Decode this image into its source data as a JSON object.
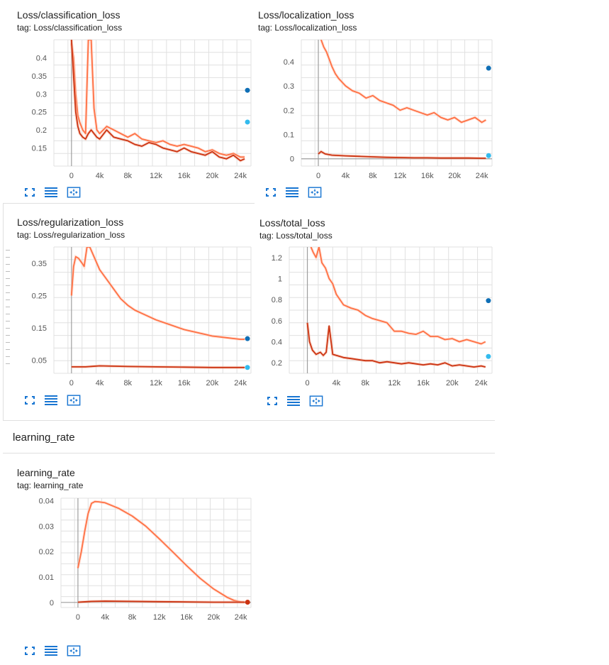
{
  "colors": {
    "series_orange": "#ff7043",
    "series_orange_light": "#ffccbc",
    "series_red": "#cc3311",
    "series_red_light": "#f4b6a3",
    "dot_dark_blue": "#0f6fb6",
    "dot_light_blue": "#33bbee",
    "grid": "#e0e0e0",
    "axis": "#9e9e9e"
  },
  "toolbar": {
    "icons": [
      "fullscreen-icon",
      "lines-icon",
      "fit-domain-icon"
    ]
  },
  "groups": {
    "learning_rate_title": "learning_rate"
  },
  "cards": [
    {
      "title": "Loss/classification_loss",
      "tag": "tag: Loss/classification_loss",
      "chart_data": {
        "type": "line",
        "x_ticks": [
          "0",
          "4k",
          "8k",
          "12k",
          "16k",
          "20k",
          "24k"
        ],
        "y_ticks": [
          "0.15",
          "0.2",
          "0.25",
          "0.3",
          "0.35",
          "0.4"
        ],
        "xlim": [
          -2500,
          25500
        ],
        "ylim": [
          0.1,
          0.45
        ],
        "series": [
          {
            "color": "orange",
            "x": [
              0,
              300,
              600,
              900,
              1200,
              1600,
              2000,
              2400,
              2800,
              3200,
              3600,
              4000,
              5000,
              6000,
              7000,
              8000,
              9000,
              10000,
              11000,
              12000,
              13000,
              14000,
              15000,
              16000,
              17000,
              18000,
              19000,
              20000,
              21000,
              22000,
              23000,
              24000,
              24600
            ],
            "y": [
              0.44,
              0.4,
              0.3,
              0.24,
              0.22,
              0.2,
              0.19,
              0.45,
              0.45,
              0.26,
              0.2,
              0.19,
              0.21,
              0.2,
              0.19,
              0.18,
              0.19,
              0.175,
              0.17,
              0.165,
              0.17,
              0.16,
              0.155,
              0.16,
              0.155,
              0.15,
              0.14,
              0.145,
              0.135,
              0.13,
              0.135,
              0.125,
              0.125
            ]
          },
          {
            "color": "red",
            "x": [
              0,
              300,
              600,
              900,
              1200,
              1600,
              2000,
              2400,
              2800,
              3200,
              3600,
              4000,
              5000,
              6000,
              7000,
              8000,
              9000,
              10000,
              11000,
              12000,
              13000,
              14000,
              15000,
              16000,
              17000,
              18000,
              19000,
              20000,
              21000,
              22000,
              23000,
              24000,
              24600
            ],
            "y": [
              0.45,
              0.35,
              0.25,
              0.21,
              0.19,
              0.18,
              0.175,
              0.19,
              0.2,
              0.19,
              0.18,
              0.175,
              0.2,
              0.18,
              0.175,
              0.17,
              0.16,
              0.155,
              0.165,
              0.16,
              0.15,
              0.145,
              0.14,
              0.15,
              0.14,
              0.135,
              0.13,
              0.14,
              0.125,
              0.12,
              0.13,
              0.115,
              0.12
            ]
          }
        ],
        "end_dots": [
          {
            "color": "dark_blue",
            "x": 25000,
            "y": 0.31
          },
          {
            "color": "light_blue",
            "x": 25000,
            "y": 0.222
          }
        ]
      }
    },
    {
      "title": "Loss/localization_loss",
      "tag": "tag: Loss/localization_loss",
      "chart_data": {
        "type": "line",
        "x_ticks": [
          "0",
          "4k",
          "8k",
          "12k",
          "16k",
          "20k",
          "24k"
        ],
        "y_ticks": [
          "0",
          "0.1",
          "0.2",
          "0.3",
          "0.4"
        ],
        "xlim": [
          -2500,
          25500
        ],
        "ylim": [
          -0.03,
          0.49
        ],
        "series": [
          {
            "color": "orange",
            "x": [
              400,
              800,
              1200,
              1600,
              2000,
              2500,
              3000,
              4000,
              5000,
              6000,
              7000,
              8000,
              9000,
              10000,
              11000,
              12000,
              13000,
              14000,
              15000,
              16000,
              17000,
              18000,
              19000,
              20000,
              21000,
              22000,
              23000,
              24000,
              24600
            ],
            "y": [
              0.49,
              0.46,
              0.44,
              0.41,
              0.38,
              0.35,
              0.33,
              0.3,
              0.28,
              0.27,
              0.25,
              0.26,
              0.24,
              0.23,
              0.22,
              0.2,
              0.21,
              0.2,
              0.19,
              0.18,
              0.19,
              0.17,
              0.16,
              0.17,
              0.15,
              0.16,
              0.17,
              0.15,
              0.16
            ]
          },
          {
            "color": "red",
            "x": [
              0,
              400,
              1000,
              2000,
              4000,
              6000,
              8000,
              10000,
              12000,
              14000,
              16000,
              18000,
              20000,
              22000,
              24000,
              24600
            ],
            "y": [
              0.02,
              0.03,
              0.02,
              0.015,
              0.012,
              0.01,
              0.008,
              0.006,
              0.005,
              0.004,
              0.004,
              0.003,
              0.003,
              0.003,
              0.002,
              0.002
            ]
          }
        ],
        "end_dots": [
          {
            "color": "dark_blue",
            "x": 25000,
            "y": 0.373
          },
          {
            "color": "light_blue",
            "x": 25000,
            "y": 0.013
          }
        ]
      }
    },
    {
      "title": "Loss/regularization_loss",
      "tag": "tag: Loss/regularization_loss",
      "chart_data": {
        "type": "line",
        "x_ticks": [
          "0",
          "4k",
          "8k",
          "12k",
          "16k",
          "20k",
          "24k"
        ],
        "y_ticks": [
          "0.05",
          "0.15",
          "0.25",
          "0.35"
        ],
        "xlim": [
          -2500,
          25500
        ],
        "ylim": [
          0.01,
          0.4
        ],
        "series": [
          {
            "color": "orange",
            "x": [
              0,
              300,
              600,
              1000,
              1500,
              1800,
              2200,
              2600,
              3000,
              4000,
              5000,
              6000,
              7000,
              8000,
              9000,
              10000,
              12000,
              14000,
              16000,
              18000,
              20000,
              22000,
              24000,
              24600
            ],
            "y": [
              0.25,
              0.34,
              0.37,
              0.365,
              0.35,
              0.34,
              0.4,
              0.4,
              0.38,
              0.33,
              0.3,
              0.27,
              0.24,
              0.22,
              0.205,
              0.195,
              0.175,
              0.16,
              0.145,
              0.135,
              0.125,
              0.12,
              0.115,
              0.115
            ]
          },
          {
            "color": "red",
            "x": [
              0,
              2000,
              4000,
              8000,
              12000,
              16000,
              20000,
              24000,
              24600
            ],
            "y": [
              0.03,
              0.03,
              0.033,
              0.031,
              0.03,
              0.029,
              0.028,
              0.028,
              0.028
            ]
          }
        ],
        "end_dots": [
          {
            "color": "dark_blue",
            "x": 25000,
            "y": 0.117
          },
          {
            "color": "light_blue",
            "x": 25000,
            "y": 0.028
          }
        ]
      }
    },
    {
      "title": "Loss/total_loss",
      "tag": "tag: Loss/total_loss",
      "chart_data": {
        "type": "line",
        "x_ticks": [
          "0",
          "4k",
          "8k",
          "12k",
          "16k",
          "20k",
          "24k"
        ],
        "y_ticks": [
          "0.2",
          "0.4",
          "0.6",
          "0.8",
          "1",
          "1.2"
        ],
        "xlim": [
          -2500,
          25500
        ],
        "ylim": [
          0.1,
          1.3
        ],
        "series": [
          {
            "color": "orange",
            "x": [
              500,
              800,
              1200,
              1600,
              2000,
              2500,
              3000,
              3500,
              4000,
              5000,
              6000,
              7000,
              8000,
              9000,
              10000,
              11000,
              12000,
              13000,
              14000,
              15000,
              16000,
              17000,
              18000,
              19000,
              20000,
              21000,
              22000,
              23000,
              24000,
              24600
            ],
            "y": [
              1.3,
              1.25,
              1.2,
              1.3,
              1.15,
              1.1,
              1.0,
              0.95,
              0.85,
              0.75,
              0.72,
              0.7,
              0.65,
              0.62,
              0.6,
              0.58,
              0.5,
              0.5,
              0.48,
              0.47,
              0.5,
              0.45,
              0.45,
              0.42,
              0.43,
              0.4,
              0.42,
              0.4,
              0.38,
              0.4
            ]
          },
          {
            "color": "red",
            "x": [
              0,
              300,
              700,
              1200,
              1800,
              2200,
              2600,
              3000,
              3500,
              4000,
              5000,
              6000,
              7000,
              8000,
              9000,
              10000,
              11000,
              12000,
              13000,
              14000,
              15000,
              16000,
              17000,
              18000,
              19000,
              20000,
              21000,
              22000,
              23000,
              24000,
              24600
            ],
            "y": [
              0.58,
              0.4,
              0.32,
              0.28,
              0.3,
              0.27,
              0.3,
              0.55,
              0.28,
              0.27,
              0.25,
              0.24,
              0.23,
              0.22,
              0.22,
              0.2,
              0.21,
              0.2,
              0.19,
              0.2,
              0.19,
              0.18,
              0.19,
              0.18,
              0.2,
              0.17,
              0.18,
              0.17,
              0.16,
              0.17,
              0.16
            ]
          }
        ],
        "end_dots": [
          {
            "color": "dark_blue",
            "x": 25000,
            "y": 0.79
          },
          {
            "color": "light_blue",
            "x": 25000,
            "y": 0.26
          }
        ]
      }
    },
    {
      "title": "learning_rate",
      "tag": "tag: learning_rate",
      "chart_data": {
        "type": "line",
        "x_ticks": [
          "0",
          "4k",
          "8k",
          "12k",
          "16k",
          "20k",
          "24k"
        ],
        "y_ticks": [
          "0",
          "0.01",
          "0.02",
          "0.03",
          "0.04"
        ],
        "xlim": [
          -2500,
          25500
        ],
        "ylim": [
          -0.002,
          0.041
        ],
        "series": [
          {
            "color": "orange",
            "x": [
              0,
              500,
              1000,
              1500,
              2000,
              2500,
              3000,
              4000,
              6000,
              8000,
              10000,
              12000,
              14000,
              16000,
              18000,
              20000,
              22000,
              23000,
              24000,
              24600
            ],
            "y": [
              0.0135,
              0.02,
              0.028,
              0.035,
              0.039,
              0.0397,
              0.0396,
              0.0392,
              0.037,
              0.034,
              0.03,
              0.025,
              0.0198,
              0.0145,
              0.0095,
              0.0053,
              0.002,
              0.0008,
              0.0002,
              0.0001
            ]
          },
          {
            "color": "red",
            "x": [
              0,
              2000,
              4000,
              8000,
              12000,
              16000,
              20000,
              24000,
              24600
            ],
            "y": [
              0.0001,
              0.0004,
              0.0005,
              0.0004,
              0.0003,
              0.0002,
              0.0001,
              0.0001,
              0.0001
            ]
          }
        ],
        "end_dots": [
          {
            "color": "red",
            "x": 25000,
            "y": 0.0001
          }
        ]
      }
    }
  ]
}
